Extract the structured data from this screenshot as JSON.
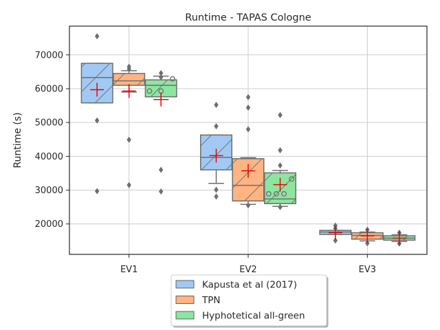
{
  "chart_data": {
    "type": "box",
    "title": "Runtime  - TAPAS Cologne",
    "xlabel": "",
    "ylabel": "Runtime (s)",
    "ylim": [
      11000,
      78500
    ],
    "yticks": [
      20000,
      30000,
      40000,
      50000,
      60000,
      70000
    ],
    "grid": true,
    "legend_position": "bottom-center-outside",
    "categories": [
      "EV1",
      "EV2",
      "EV3"
    ],
    "series": [
      {
        "name": "Kapusta et al (2017)",
        "color": "#a1c9f4",
        "boxes": [
          {
            "q1": 55800,
            "median": 63300,
            "q3": 67500,
            "whisker_low": 55800,
            "whisker_high": 67500,
            "mean": 59700,
            "outliers": [
              75500,
              50600,
              29700
            ],
            "inner_points": []
          },
          {
            "q1": 36000,
            "median": 39700,
            "q3": 46300,
            "whisker_low": 32000,
            "whisker_high": 46300,
            "mean": 40200,
            "outliers": [
              55200,
              48900,
              30100,
              28100
            ],
            "inner_points": []
          },
          {
            "q1": 16900,
            "median": 17600,
            "q3": 18100,
            "whisker_low": 16900,
            "whisker_high": 18100,
            "mean": 17400,
            "outliers": [
              19500,
              18700,
              15100
            ],
            "inner_points": []
          }
        ]
      },
      {
        "name": "TPN",
        "color": "#ffb482",
        "boxes": [
          {
            "q1": 61000,
            "median": 62300,
            "q3": 64500,
            "whisker_low": 59000,
            "whisker_high": 65300,
            "mean": 59300,
            "outliers": [
              66500,
              65800,
              44900,
              31500
            ],
            "inner_points": []
          },
          {
            "q1": 26800,
            "median": 31400,
            "q3": 39300,
            "whisker_low": 25800,
            "whisker_high": 39600,
            "mean": 35700,
            "outliers": [
              57500,
              54400,
              48000,
              25500
            ],
            "inner_points": []
          },
          {
            "q1": 15500,
            "median": 16600,
            "q3": 17400,
            "whisker_low": 15000,
            "whisker_high": 17600,
            "mean": 16500,
            "outliers": [
              18300,
              14300
            ],
            "inner_points": []
          }
        ]
      },
      {
        "name": "Hyphotetical all-green",
        "color": "#8de5a1",
        "boxes": [
          {
            "q1": 57600,
            "median": 61000,
            "q3": 62600,
            "whisker_low": 56800,
            "whisker_high": 63700,
            "mean": 56800,
            "outliers": [
              64600,
              63400,
              36000,
              29600
            ],
            "inner_points": [
              59300,
              59300,
              62900
            ]
          },
          {
            "q1": 26000,
            "median": 27400,
            "q3": 35100,
            "whisker_low": 25200,
            "whisker_high": 35800,
            "mean": 31600,
            "outliers": [
              52200,
              41800,
              37300,
              25000
            ],
            "inner_points": [
              28900,
              28900,
              28900,
              33300
            ]
          },
          {
            "q1": 15200,
            "median": 15800,
            "q3": 16500,
            "whisker_low": 14800,
            "whisker_high": 16800,
            "mean": 15800,
            "outliers": [
              17400,
              14200
            ],
            "inner_points": []
          }
        ]
      }
    ]
  }
}
